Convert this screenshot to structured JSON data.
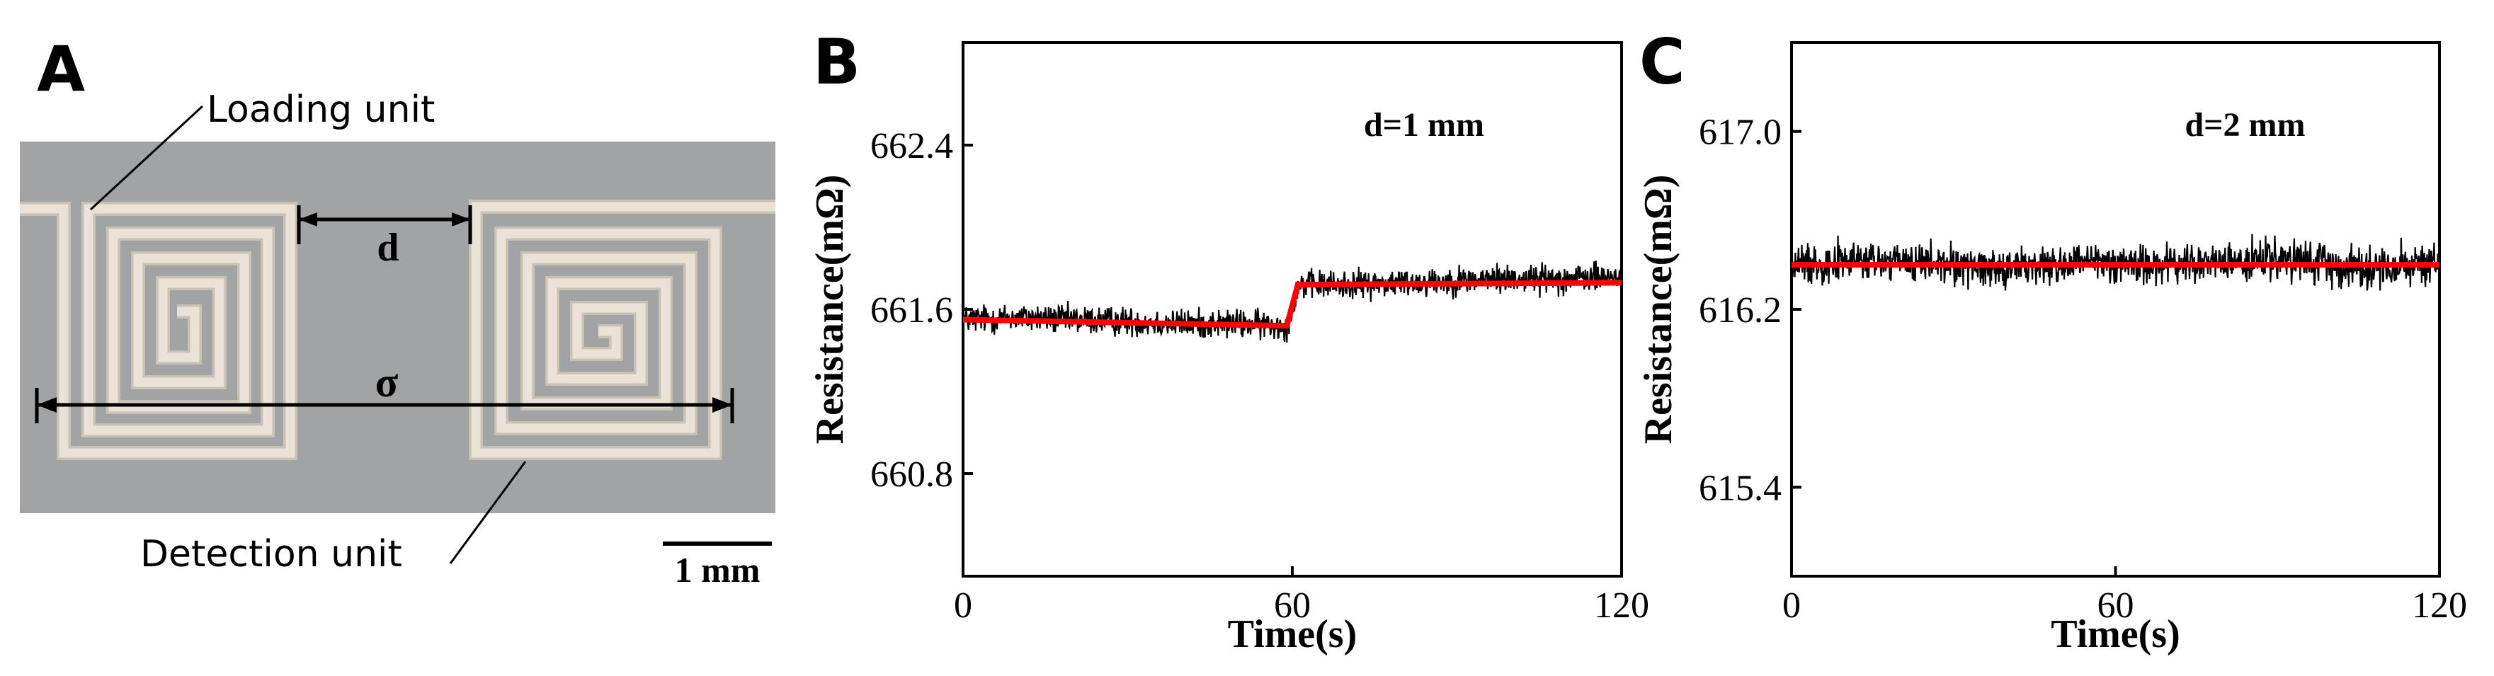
{
  "panel_a": {
    "letter": "A",
    "loading_label": "Loading unit",
    "detection_label": "Detection unit",
    "d_label": "d",
    "sigma_label": "σ",
    "scale_label": "1 mm",
    "colors": {
      "substrate": "#a1a3a5",
      "trace": "#e9e2d8",
      "trace_edge": "#c9c1b4"
    }
  },
  "chart_data": [
    {
      "type": "line",
      "letter": "B",
      "annotation": "d=1 mm",
      "xlabel": "Time(s)",
      "ylabel": "Resistance(mΩ)",
      "xlim": [
        0,
        120
      ],
      "ylim": [
        660.3,
        662.9
      ],
      "xticks": [
        "0",
        "60",
        "120"
      ],
      "yticks": [
        "660.8",
        "661.6",
        "662.4"
      ],
      "grid": false,
      "series": [
        {
          "role": "measured",
          "color": "#000000",
          "x": [
            0,
            10,
            20,
            30,
            40,
            50,
            59,
            60,
            61,
            70,
            80,
            90,
            100,
            110,
            120
          ],
          "values": [
            661.55,
            661.56,
            661.55,
            661.54,
            661.53,
            661.53,
            661.52,
            661.6,
            661.72,
            661.72,
            661.73,
            661.74,
            661.75,
            661.75,
            661.76
          ]
        },
        {
          "role": "fit",
          "color": "#ff0000",
          "x": [
            0,
            59,
            61,
            120
          ],
          "values": [
            661.55,
            661.52,
            661.72,
            661.73
          ]
        }
      ]
    },
    {
      "type": "line",
      "letter": "C",
      "annotation": "d=2 mm",
      "xlabel": "Time(s)",
      "ylabel": "Resistance(mΩ)",
      "xlim": [
        0,
        120
      ],
      "ylim": [
        615.0,
        617.4
      ],
      "xticks": [
        "0",
        "60",
        "120"
      ],
      "yticks": [
        "615.4",
        "616.2",
        "617.0"
      ],
      "grid": false,
      "series": [
        {
          "role": "measured",
          "color": "#000000",
          "x": [
            0,
            10,
            20,
            30,
            40,
            50,
            60,
            70,
            80,
            90,
            100,
            110,
            120
          ],
          "values": [
            616.4,
            616.42,
            616.41,
            616.4,
            616.39,
            616.4,
            616.41,
            616.4,
            616.41,
            616.42,
            616.4,
            616.39,
            616.4
          ]
        },
        {
          "role": "fit",
          "color": "#ff0000",
          "x": [
            0,
            120
          ],
          "values": [
            616.4,
            616.4
          ]
        }
      ]
    }
  ]
}
